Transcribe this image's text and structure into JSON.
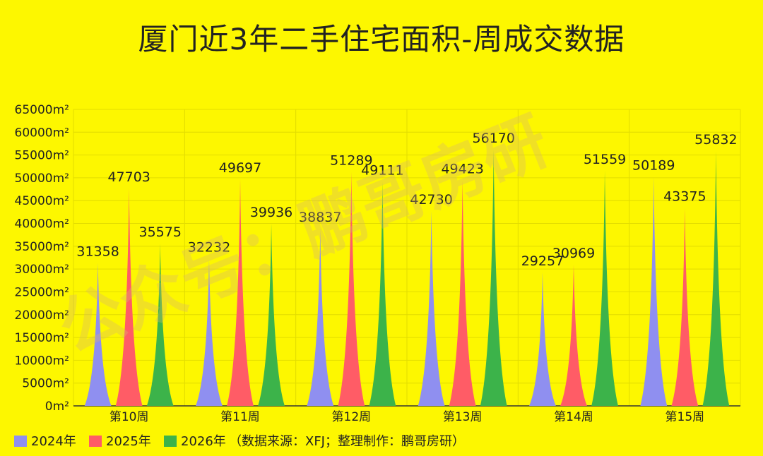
{
  "chart_data": {
    "type": "area",
    "title": "厦门近3年二手住宅面积-周成交数据",
    "categories": [
      "第10周",
      "第11周",
      "第12周",
      "第13周",
      "第14周",
      "第15周"
    ],
    "series": [
      {
        "name": "2024年",
        "color": "#8f8ff0",
        "values": [
          31358,
          32232,
          38837,
          42730,
          29257,
          50189
        ]
      },
      {
        "name": "2025年",
        "color": "#ff5c66",
        "values": [
          47703,
          49697,
          51289,
          49423,
          30969,
          43375
        ]
      },
      {
        "name": "2026年",
        "color": "#3cb34a",
        "values": [
          35575,
          39936,
          49111,
          56170,
          51559,
          55832
        ]
      }
    ],
    "ylim": [
      0,
      65000
    ],
    "yticks": [
      "0m²",
      "5000m²",
      "10000m²",
      "15000m²",
      "20000m²",
      "25000m²",
      "30000m²",
      "35000m²",
      "40000m²",
      "45000m²",
      "50000m²",
      "55000m²",
      "60000m²",
      "65000m²"
    ],
    "ytick_values": [
      0,
      5000,
      10000,
      15000,
      20000,
      25000,
      30000,
      35000,
      40000,
      45000,
      50000,
      55000,
      60000,
      65000
    ],
    "grid": true,
    "legend": "bottom-left",
    "note": "（数据来源：XFJ；整理制作：鹏哥房研）",
    "watermark": "公众号：鹏哥房研"
  }
}
